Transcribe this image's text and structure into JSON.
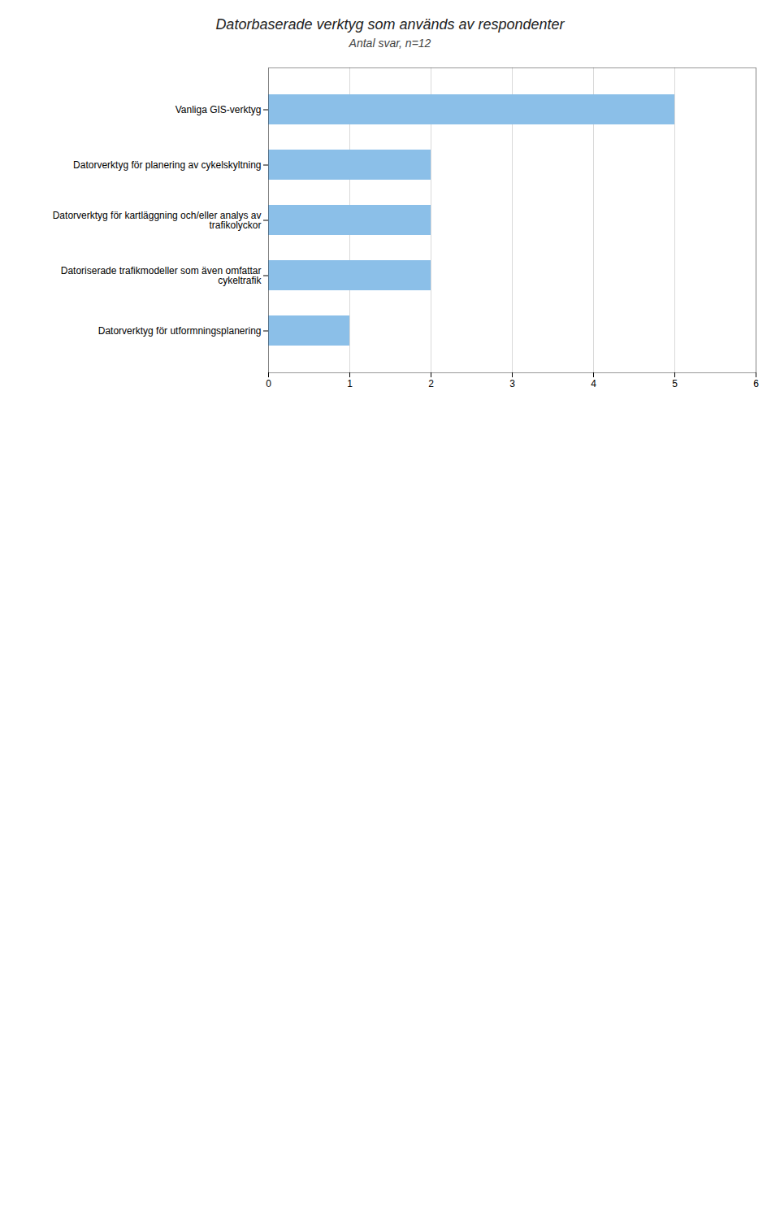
{
  "chart_data": {
    "type": "bar",
    "orientation": "horizontal",
    "title": "Datorbaserade verktyg som används av respondenter",
    "subtitle": "Antal svar, n=12",
    "categories": [
      "Datorverktyg för utformningsplanering",
      "Datoriserade trafikmodeller som även omfattar\ncykeltrafik",
      "Datorverktyg för kartläggning och/eller analys av\ntrafikolyckor",
      "Datorverktyg för planering av cykelskyltning",
      "Vanliga GIS-verktyg"
    ],
    "values": [
      1,
      2,
      2,
      2,
      5
    ],
    "color": "#8BBFE8",
    "xlim": [
      0,
      6
    ],
    "xticks": [
      0,
      1,
      2,
      3,
      4,
      5,
      6
    ],
    "grid": true
  }
}
